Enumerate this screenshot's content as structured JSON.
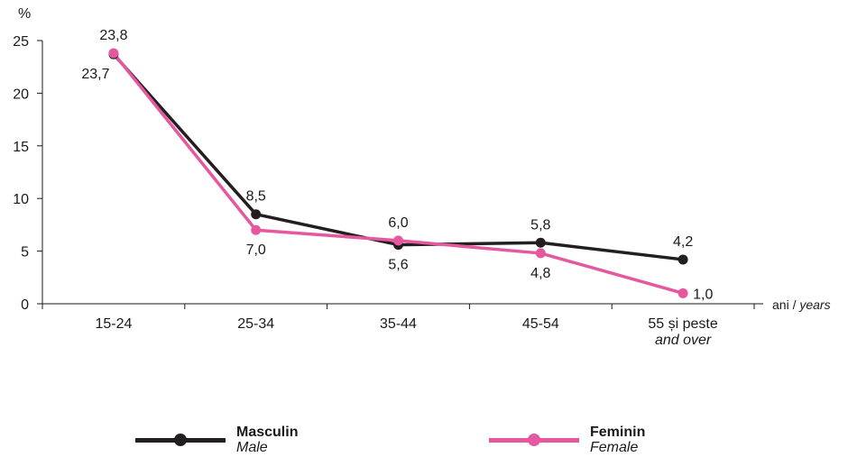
{
  "chart_data": {
    "type": "line",
    "ylabel": "%",
    "xunit": {
      "ro": "ani",
      "sep": " / ",
      "en": "years"
    },
    "ylim": [
      0,
      25
    ],
    "yticks": [
      "0",
      "5",
      "10",
      "15",
      "20",
      "25"
    ],
    "categories": [
      {
        "ro": "15-24",
        "en": ""
      },
      {
        "ro": "25-34",
        "en": ""
      },
      {
        "ro": "35-44",
        "en": ""
      },
      {
        "ro": "45-54",
        "en": ""
      },
      {
        "ro": "55 și peste",
        "en": "and over"
      }
    ],
    "series": [
      {
        "name": "Masculin",
        "name_en": "Male",
        "color": "#231f20",
        "values": [
          23.7,
          8.5,
          5.6,
          5.8,
          4.2
        ],
        "labels": [
          "23,7",
          "8,5",
          "5,6",
          "5,8",
          "4,2"
        ],
        "label_pos": [
          "below-left",
          "above",
          "below",
          "above",
          "above"
        ]
      },
      {
        "name": "Feminin",
        "name_en": "Female",
        "color": "#e5589f",
        "values": [
          23.8,
          7.0,
          6.0,
          4.8,
          1.0
        ],
        "labels": [
          "23,8",
          "7,0",
          "6,0",
          "4,8",
          "1,0"
        ],
        "label_pos": [
          "above",
          "below",
          "above",
          "below",
          "right"
        ]
      }
    ],
    "grid": false,
    "legend_position": "bottom"
  }
}
